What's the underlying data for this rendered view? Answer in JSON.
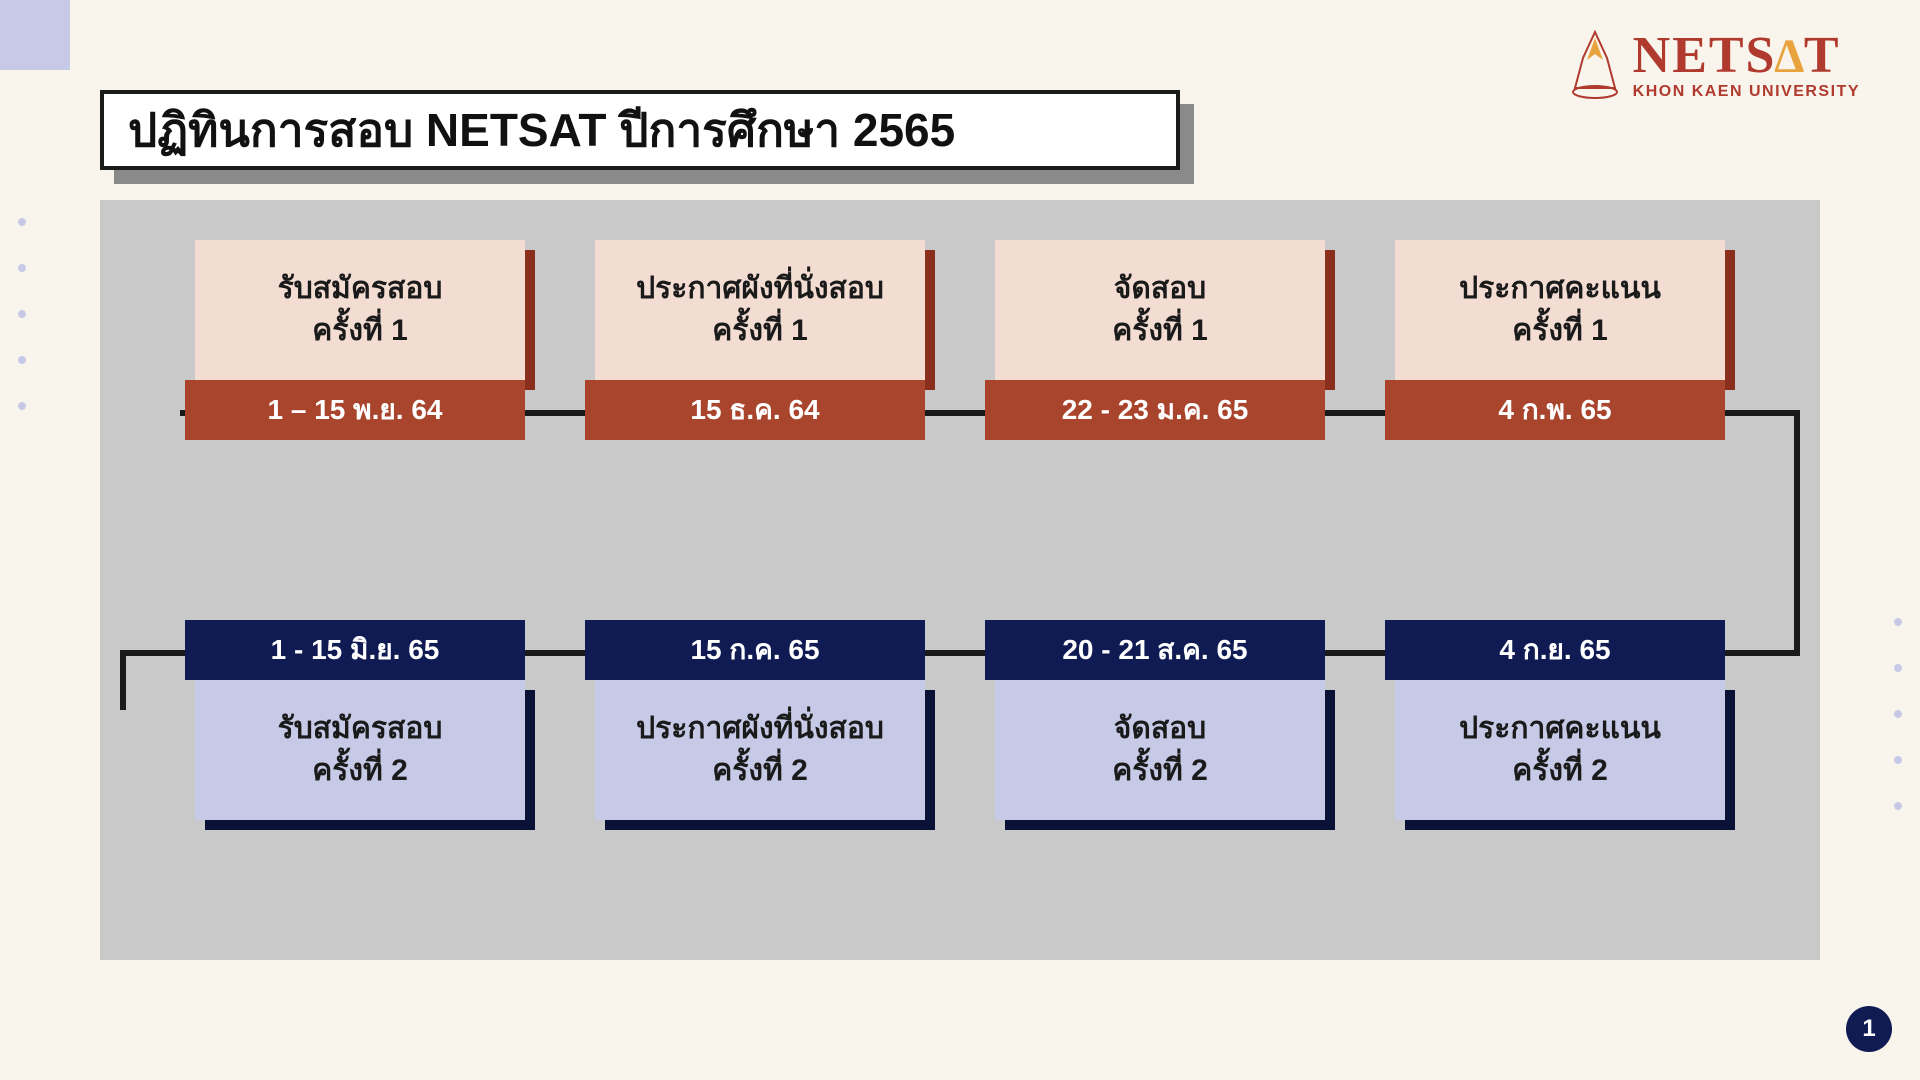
{
  "page": {
    "title": "ปฏิทินการสอบ NETSAT ปีการศึกษา 2565",
    "page_number": "1",
    "background": "#faf5ec",
    "panel_bg": "#c9c9c9",
    "connector_color": "#1a1a1a",
    "corner_color": "#c6cae6"
  },
  "logo": {
    "brand": "NETSAT",
    "subtitle": "KHON KAEN UNIVERSITY",
    "color_primary": "#b03a2e",
    "color_accent": "#e8a33d"
  },
  "row1": {
    "label_bg": "#f3dcd2",
    "date_bg": "#a8452c",
    "shadow_bg": "#8a2f1c",
    "items": [
      {
        "line1": "รับสมัครสอบ",
        "line2": "ครั้งที่ 1",
        "date": "1 – 15 พ.ย. 64"
      },
      {
        "line1": "ประกาศผังที่นั่งสอบ",
        "line2": "ครั้งที่ 1",
        "date": "15 ธ.ค. 64"
      },
      {
        "line1": "จัดสอบ",
        "line2": "ครั้งที่ 1",
        "date": "22 - 23 ม.ค. 65"
      },
      {
        "line1": "ประกาศคะแนน",
        "line2": "ครั้งที่ 1",
        "date": "4 ก.พ. 65"
      }
    ]
  },
  "row2": {
    "label_bg": "#c6cae6",
    "date_bg": "#0f1b52",
    "shadow_bg": "#0a1238",
    "items": [
      {
        "line1": "รับสมัครสอบ",
        "line2": "ครั้งที่ 2",
        "date": "1 - 15 มิ.ย. 65"
      },
      {
        "line1": "ประกาศผังที่นั่งสอบ",
        "line2": "ครั้งที่ 2",
        "date": "15 ก.ค. 65"
      },
      {
        "line1": "จัดสอบ",
        "line2": "ครั้งที่ 2",
        "date": "20 - 21 ส.ค. 65"
      },
      {
        "line1": "ประกาศคะแนน",
        "line2": "ครั้งที่ 2",
        "date": "4 ก.ย. 65"
      }
    ]
  }
}
